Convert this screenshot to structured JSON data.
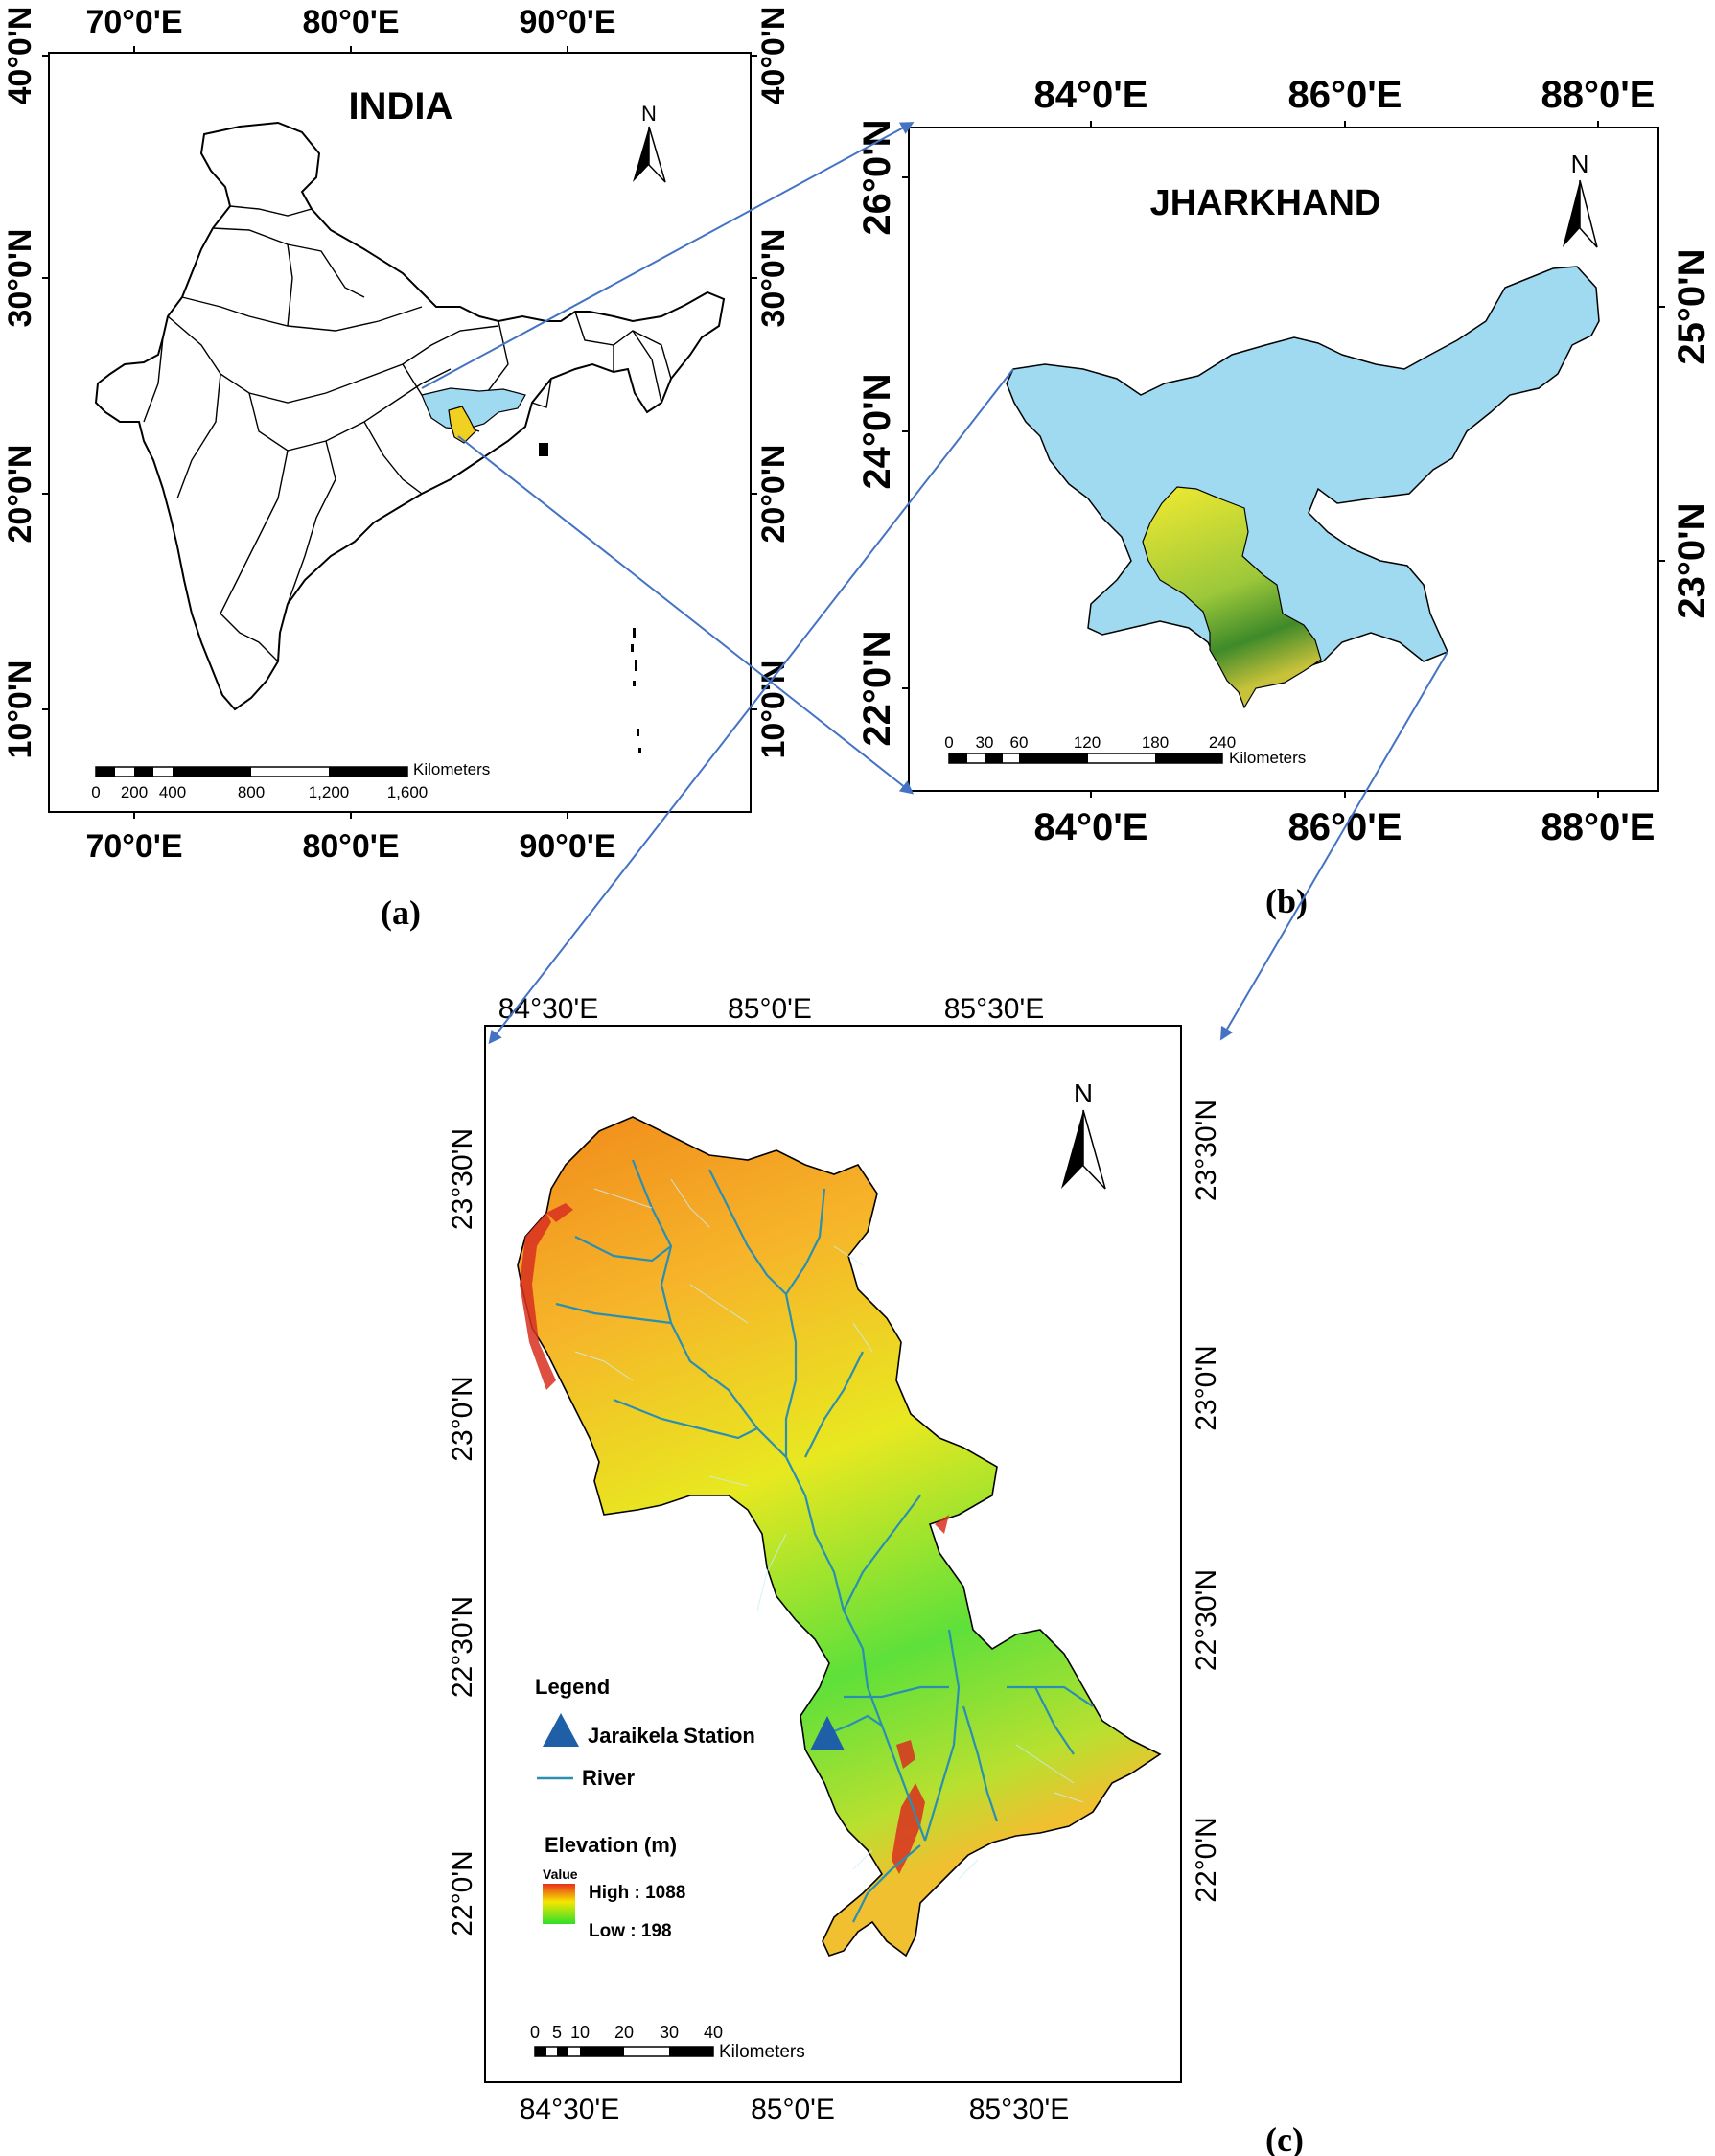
{
  "panel_a": {
    "title": "INDIA",
    "top_ticks": [
      "70°0'E",
      "80°0'E",
      "90°0'E"
    ],
    "bottom_ticks": [
      "70°0'E",
      "80°0'E",
      "90°0'E"
    ],
    "left_ticks": [
      "40°0'N",
      "30°0'N",
      "20°0'N",
      "10°0'N"
    ],
    "right_ticks": [
      "40°0'N",
      "30°0'N",
      "20°0'N",
      "10°0'N"
    ],
    "north": "N",
    "scale_unit": "Kilometers",
    "scale_labels": [
      "0",
      "200",
      "400",
      "800",
      "1,200",
      "1,600"
    ],
    "caption": "(a)"
  },
  "panel_b": {
    "title": "JHARKHAND",
    "top_ticks": [
      "84°0'E",
      "86°0'E",
      "88°0'E"
    ],
    "bottom_ticks": [
      "84°0'E",
      "86°0'E",
      "88°0'E"
    ],
    "left_ticks": [
      "26°0'N",
      "24°0'N",
      "22°0'N"
    ],
    "right_ticks": [
      "25°0'N",
      "23°0'N"
    ],
    "north": "N",
    "scale_unit": "Kilometers",
    "scale_labels": [
      "0",
      "30",
      "60",
      "120",
      "180",
      "240"
    ],
    "caption": "(b)"
  },
  "panel_c": {
    "top_ticks": [
      "84°30'E",
      "85°0'E",
      "85°30'E"
    ],
    "bottom_ticks": [
      "84°30'E",
      "85°0'E",
      "85°30'E"
    ],
    "left_ticks": [
      "23°30'N",
      "23°0'N",
      "22°30'N",
      "22°0'N"
    ],
    "right_ticks": [
      "23°30'N",
      "23°0'N",
      "22°30'N",
      "22°0'N"
    ],
    "north": "N",
    "legend_title": "Legend",
    "station_label": "Jaraikela Station",
    "river_label": "River",
    "elevation_title": "Elevation (m)",
    "value_label": "Value",
    "high_label": "High : 1088",
    "low_label": "Low : 198",
    "scale_unit": "Kilometers",
    "scale_labels": [
      "0",
      "5",
      "10",
      "20",
      "30",
      "40"
    ],
    "caption": "(c)"
  },
  "colors": {
    "jharkhand_fill": "#9fdaf0",
    "arrow": "#4472c4",
    "river": "#2a8fb0",
    "station": "#1f5fa8",
    "elev_high": "#e8301c",
    "elev_mid": "#f5e600",
    "elev_low": "#2ee02a"
  }
}
